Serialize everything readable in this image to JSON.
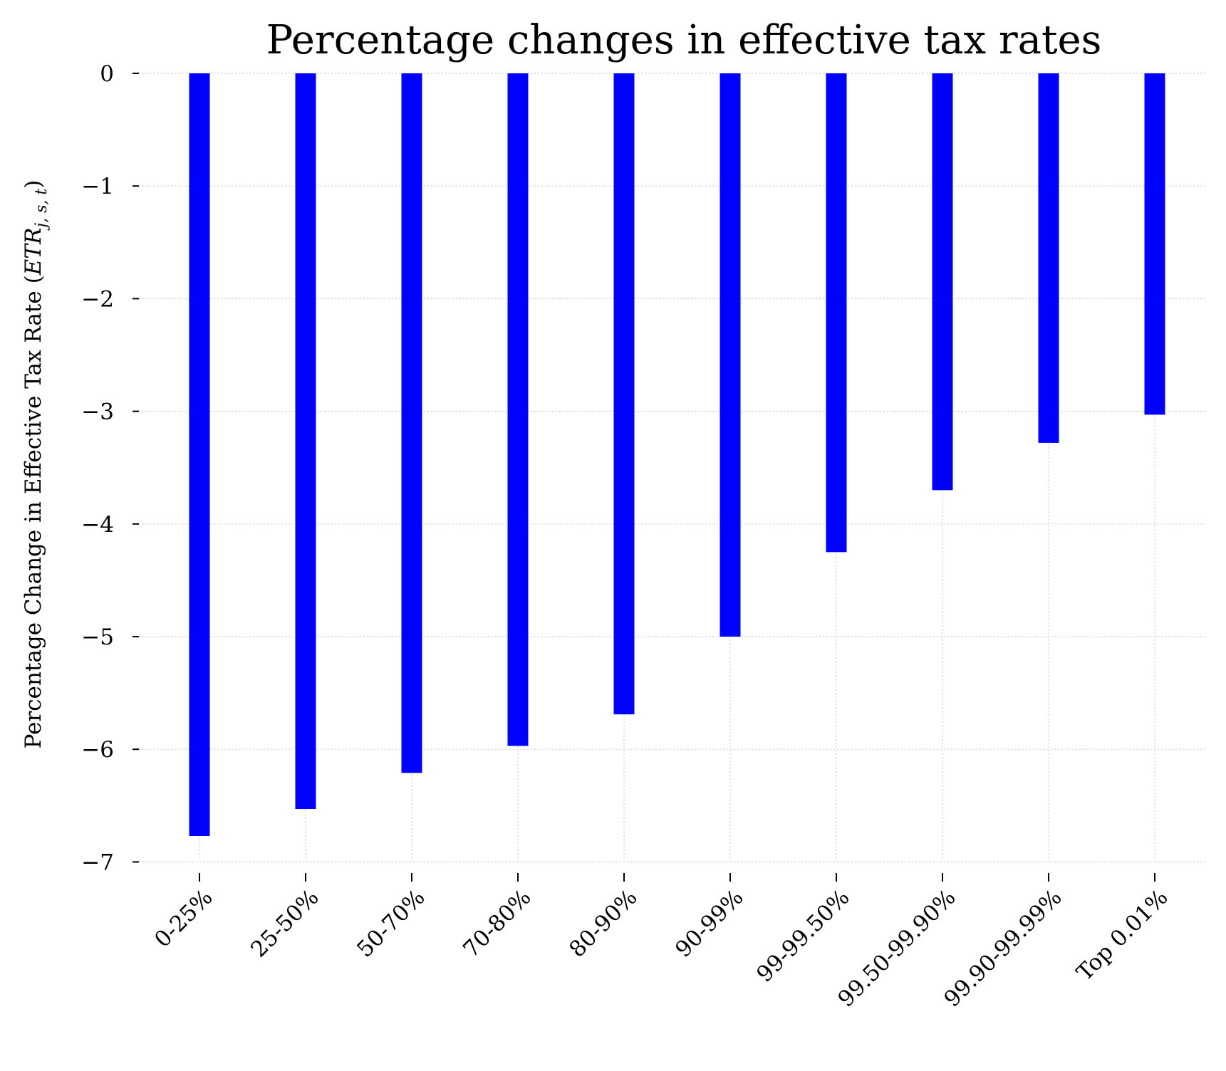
{
  "chart_data": {
    "type": "bar",
    "title": "Percentage changes in effective tax rates",
    "xlabel": "",
    "ylabel": "Percentage Change in Effective Tax Rate (",
    "ylabel_math": "ETR",
    "ylabel_sub": "j, s, t",
    "ylabel_close": ")",
    "categories": [
      "0-25%",
      "25-50%",
      "50-70%",
      "70-80%",
      "80-90%",
      "90-99%",
      "99-99.50%",
      "99.50-99.90%",
      "99.90-99.99%",
      "Top 0.01%"
    ],
    "values": [
      -6.77,
      -6.53,
      -6.21,
      -5.97,
      -5.69,
      -5.0,
      -4.25,
      -3.7,
      -3.28,
      -3.03
    ],
    "ylim": [
      -7.17,
      0
    ],
    "yticks": [
      0,
      -1,
      -2,
      -3,
      -4,
      -5,
      -6,
      -7
    ],
    "ytick_labels": [
      "0",
      "−1",
      "−2",
      "−3",
      "−4",
      "−5",
      "−6",
      "−7"
    ],
    "grid": true,
    "bar_color": "#0000ff"
  }
}
